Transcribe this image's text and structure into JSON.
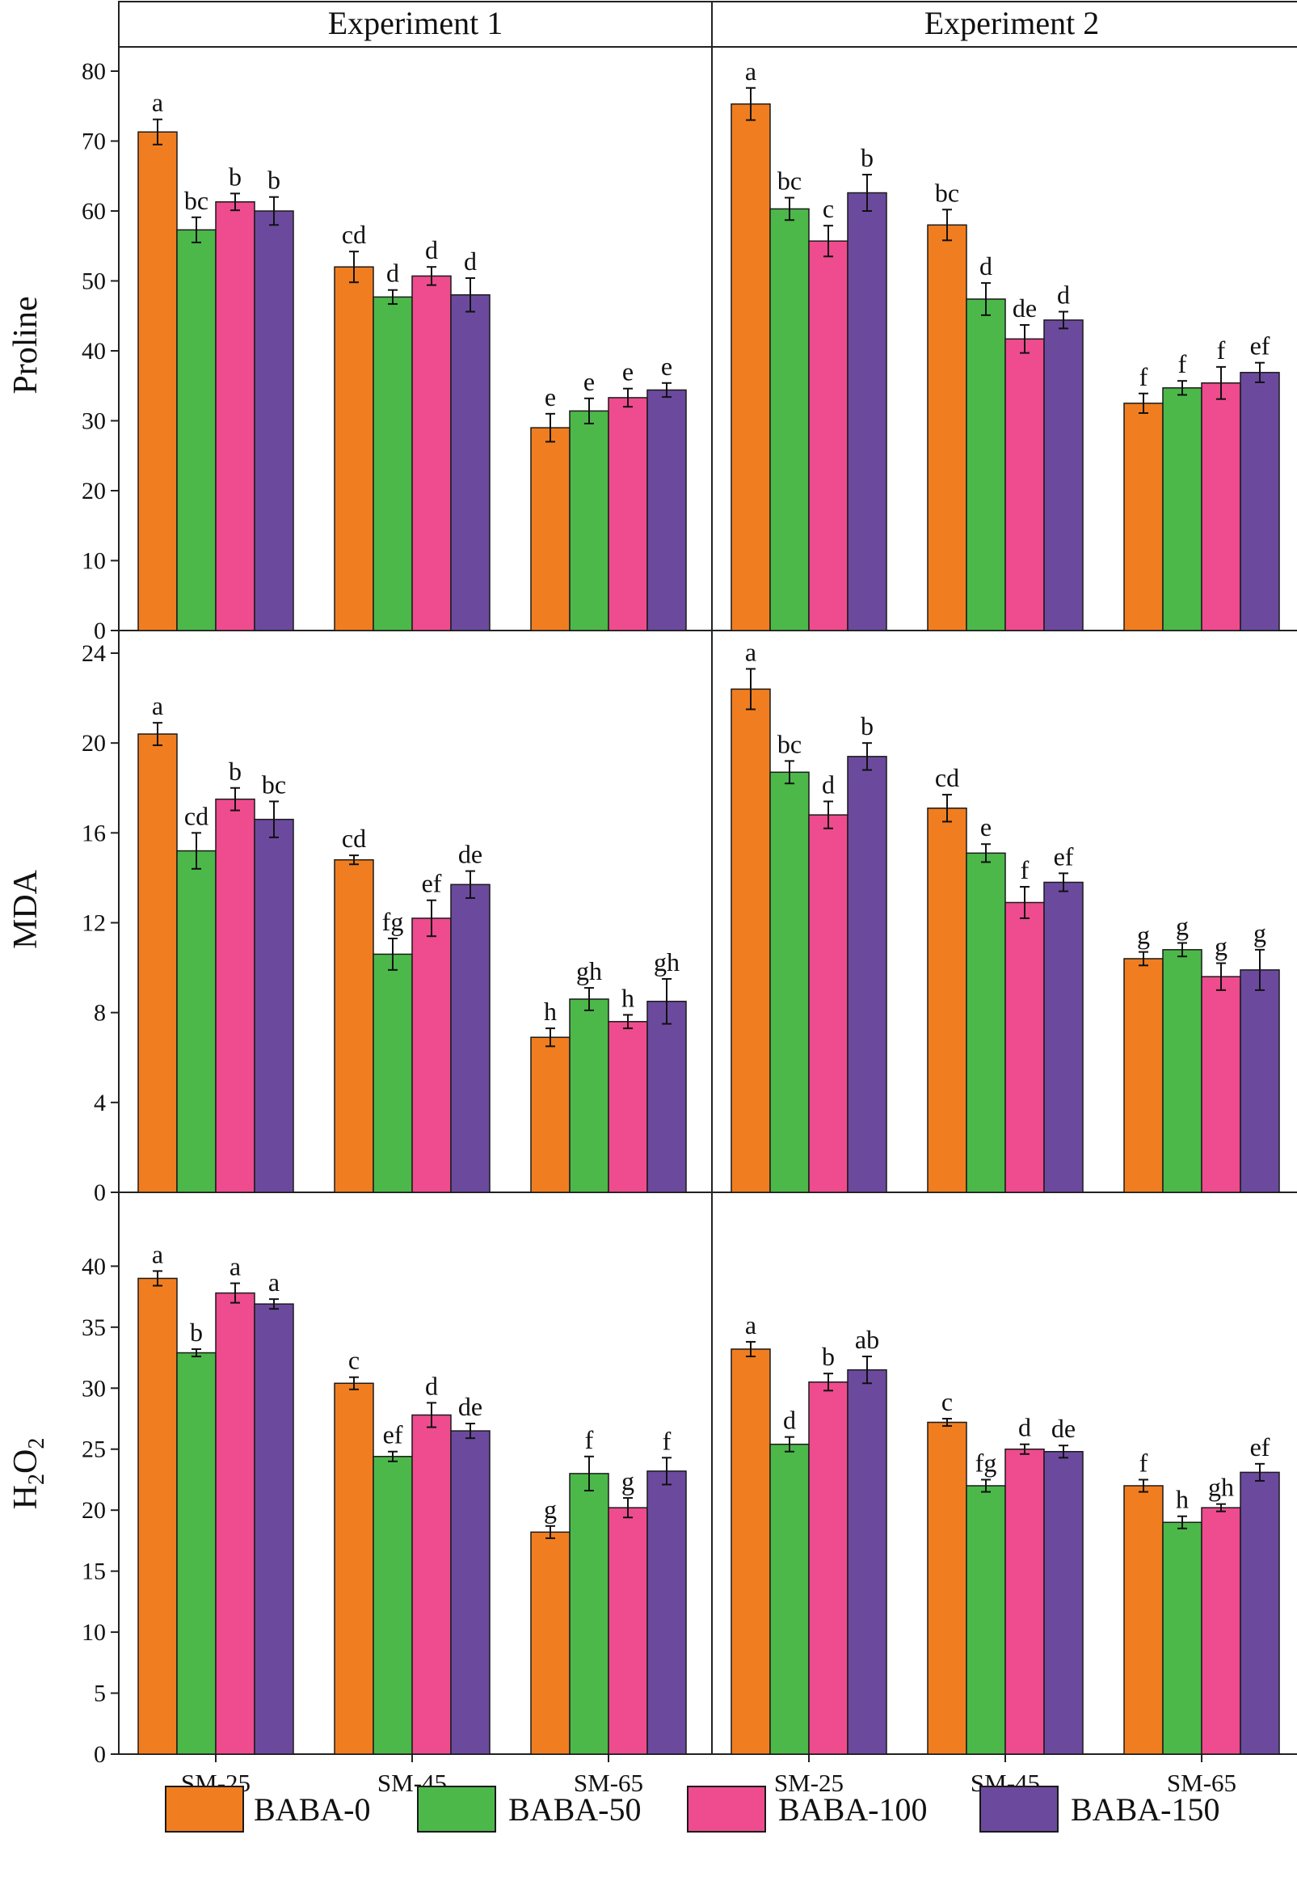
{
  "chart_data": {
    "type": "bar",
    "columns": [
      "Experiment 1",
      "Experiment 2"
    ],
    "categories": [
      "SM-25",
      "SM-45",
      "SM-65"
    ],
    "series_names": [
      "BABA-0",
      "BABA-50",
      "BABA-100",
      "BABA-150"
    ],
    "colors": [
      "#F07E20",
      "#4CB84A",
      "#EE4C8E",
      "#6B4A9E"
    ],
    "legend_position": "bottom",
    "rows": [
      {
        "ylabel": "Proline",
        "ylim": [
          0,
          80
        ],
        "yticks": [
          0,
          10,
          20,
          30,
          40,
          50,
          60,
          70,
          80
        ],
        "panels": [
          {
            "values": [
              [
                71.3,
                52.0,
                29.0
              ],
              [
                57.3,
                47.7,
                31.4
              ],
              [
                61.3,
                50.7,
                33.3
              ],
              [
                60.0,
                48.0,
                34.4
              ]
            ],
            "errors": [
              [
                1.8,
                2.2,
                2.0
              ],
              [
                1.8,
                1.0,
                1.8
              ],
              [
                1.2,
                1.3,
                1.3
              ],
              [
                2.0,
                2.4,
                1.0
              ]
            ],
            "letters": [
              [
                "a",
                "cd",
                "e"
              ],
              [
                "bc",
                "d",
                "e"
              ],
              [
                "b",
                "d",
                "e"
              ],
              [
                "b",
                "d",
                "e"
              ]
            ]
          },
          {
            "values": [
              [
                75.3,
                58.0,
                32.5
              ],
              [
                60.3,
                47.4,
                34.7
              ],
              [
                55.7,
                41.7,
                35.4
              ],
              [
                62.6,
                44.4,
                36.9
              ]
            ],
            "errors": [
              [
                2.3,
                2.2,
                1.4
              ],
              [
                1.6,
                2.3,
                1.0
              ],
              [
                2.2,
                2.0,
                2.3
              ],
              [
                2.6,
                1.2,
                1.4
              ]
            ],
            "letters": [
              [
                "a",
                "bc",
                "f"
              ],
              [
                "bc",
                "d",
                "f"
              ],
              [
                "c",
                "de",
                "f"
              ],
              [
                "b",
                "d",
                "ef"
              ]
            ]
          }
        ]
      },
      {
        "ylabel": "MDA",
        "ylim": [
          0,
          24
        ],
        "yticks": [
          0,
          4,
          8,
          12,
          16,
          20,
          24
        ],
        "panels": [
          {
            "values": [
              [
                20.4,
                14.8,
                6.9
              ],
              [
                15.2,
                10.6,
                8.6
              ],
              [
                17.5,
                12.2,
                7.6
              ],
              [
                16.6,
                13.7,
                8.5
              ]
            ],
            "errors": [
              [
                0.5,
                0.2,
                0.4
              ],
              [
                0.8,
                0.7,
                0.5
              ],
              [
                0.5,
                0.8,
                0.3
              ],
              [
                0.8,
                0.6,
                1.0
              ]
            ],
            "letters": [
              [
                "a",
                "cd",
                "h"
              ],
              [
                "cd",
                "fg",
                "gh"
              ],
              [
                "b",
                "ef",
                "h"
              ],
              [
                "bc",
                "de",
                "gh"
              ]
            ]
          },
          {
            "values": [
              [
                22.4,
                17.1,
                10.4
              ],
              [
                18.7,
                15.1,
                10.8
              ],
              [
                16.8,
                12.9,
                9.6
              ],
              [
                19.4,
                13.8,
                9.9
              ]
            ],
            "errors": [
              [
                0.9,
                0.6,
                0.3
              ],
              [
                0.5,
                0.4,
                0.3
              ],
              [
                0.6,
                0.7,
                0.6
              ],
              [
                0.6,
                0.4,
                0.9
              ]
            ],
            "letters": [
              [
                "a",
                "cd",
                "g"
              ],
              [
                "bc",
                "e",
                "g"
              ],
              [
                "d",
                "f",
                "g"
              ],
              [
                "b",
                "ef",
                "g"
              ]
            ]
          }
        ]
      },
      {
        "ylabel_main": "H",
        "ylabel_sub1": "2",
        "ylabel_mid": "O",
        "ylabel_sub2": "2",
        "ylim": [
          0,
          44
        ],
        "yticks": [
          0,
          5,
          10,
          15,
          20,
          25,
          30,
          35,
          40
        ],
        "panels": [
          {
            "values": [
              [
                39.0,
                30.4,
                18.2
              ],
              [
                32.9,
                24.4,
                23.0
              ],
              [
                37.8,
                27.8,
                20.2
              ],
              [
                36.9,
                26.5,
                23.2
              ]
            ],
            "errors": [
              [
                0.6,
                0.5,
                0.5
              ],
              [
                0.3,
                0.4,
                1.4
              ],
              [
                0.8,
                1.0,
                0.8
              ],
              [
                0.4,
                0.6,
                1.1
              ]
            ],
            "letters": [
              [
                "a",
                "c",
                "g"
              ],
              [
                "b",
                "ef",
                "f"
              ],
              [
                "a",
                "d",
                "g"
              ],
              [
                "a",
                "de",
                "f"
              ]
            ]
          },
          {
            "values": [
              [
                33.2,
                27.2,
                22.0
              ],
              [
                25.4,
                22.0,
                19.0
              ],
              [
                30.5,
                25.0,
                20.2
              ],
              [
                31.5,
                24.8,
                23.1
              ]
            ],
            "errors": [
              [
                0.6,
                0.3,
                0.5
              ],
              [
                0.6,
                0.5,
                0.5
              ],
              [
                0.7,
                0.4,
                0.3
              ],
              [
                1.1,
                0.5,
                0.7
              ]
            ],
            "letters": [
              [
                "a",
                "c",
                "f"
              ],
              [
                "d",
                "fg",
                "h"
              ],
              [
                "b",
                "d",
                "gh"
              ],
              [
                "ab",
                "de",
                "ef"
              ]
            ]
          }
        ]
      }
    ]
  }
}
